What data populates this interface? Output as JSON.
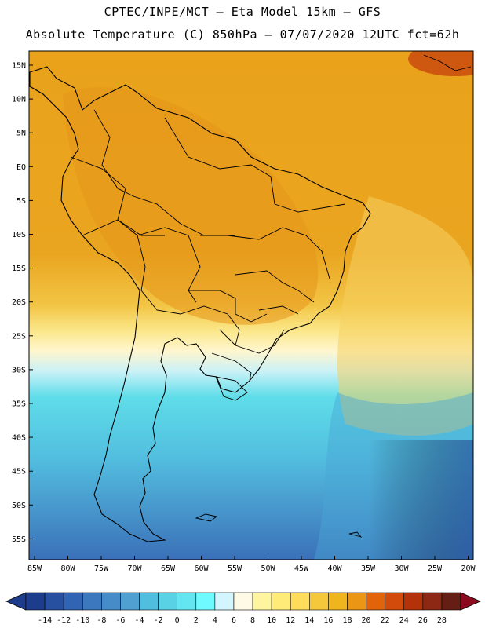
{
  "header": {
    "line1": "CPTEC/INPE/MCT –  Eta Model 15km – GFS",
    "line2": "Absolute Temperature (C) 850hPa – 07/07/2020 12UTC fct=62h"
  },
  "map": {
    "lat_labels": [
      "15N",
      "10N",
      "5N",
      "EQ",
      "5S",
      "10S",
      "15S",
      "20S",
      "25S",
      "30S",
      "35S",
      "40S",
      "45S",
      "50S",
      "55S"
    ],
    "lon_labels": [
      "85W",
      "80W",
      "75W",
      "70W",
      "65W",
      "60W",
      "55W",
      "50W",
      "45W",
      "40W",
      "35W",
      "30W",
      "25W",
      "20W"
    ]
  },
  "colorbar": {
    "labels": [
      "-14",
      "-12",
      "-10",
      "-8",
      "-6",
      "-4",
      "-2",
      "0",
      "2",
      "4",
      "6",
      "8",
      "10",
      "12",
      "14",
      "16",
      "18",
      "20",
      "22",
      "24",
      "26",
      "28"
    ],
    "colors": [
      "#1e3c8c",
      "#2850a0",
      "#3264b4",
      "#3c78be",
      "#468cc8",
      "#50a0d2",
      "#50bede",
      "#5ad2e6",
      "#64e6f0",
      "#6efaff",
      "#d2f5ff",
      "#fffae6",
      "#fff5a0",
      "#ffeb78",
      "#ffdc5a",
      "#f5c83c",
      "#f0b41e",
      "#eb9614",
      "#e1640a",
      "#d24b0a",
      "#b4320a",
      "#8c2814",
      "#641e14"
    ]
  }
}
